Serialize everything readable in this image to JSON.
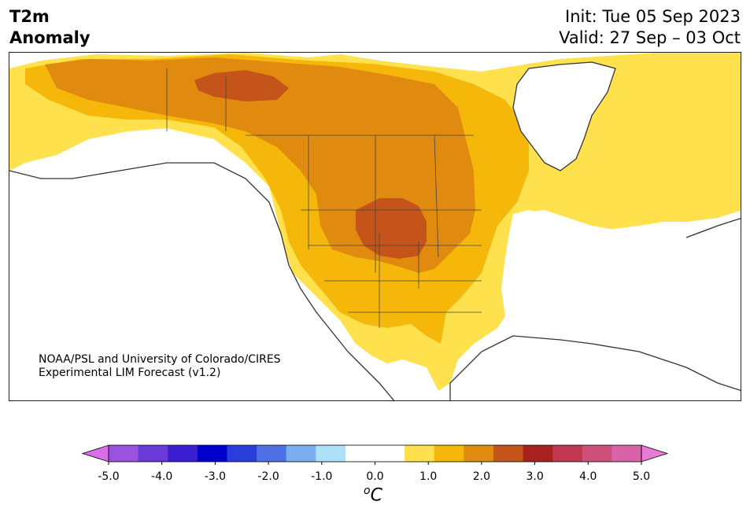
{
  "title": {
    "line1": "T2m",
    "line2": "Anomaly"
  },
  "dates": {
    "init": "Init: Tue 05 Sep 2023",
    "valid": "Valid: 27 Sep – 03 Oct"
  },
  "credit": {
    "line1": "NOAA/PSL and University of Colorado/CIRES",
    "line2": "Experimental LIM Forecast (v1.2)"
  },
  "colorbar": {
    "ticks": [
      "-5.0",
      "-4.0",
      "-3.0",
      "-2.0",
      "-1.0",
      "0.0",
      "1.0",
      "2.0",
      "3.0",
      "4.0",
      "5.0"
    ],
    "unit_symbol": "o",
    "unit_letter": "C",
    "colors": [
      "#d96ee8",
      "#9b52e0",
      "#6a3ad9",
      "#3a1fd0",
      "#0000cc",
      "#2a3ddb",
      "#4f6fe6",
      "#78aef0",
      "#aee0f8",
      "#ffffff",
      "#ffffff",
      "#ffe14d",
      "#f5b80a",
      "#e08a10",
      "#c4541a",
      "#a82020",
      "#c0384e",
      "#cf507a",
      "#d963a8",
      "#e87ad6"
    ]
  },
  "map_colors": {
    "land": "#ffffff",
    "ocean": "#ffffff",
    "lake": "#ffffff",
    "level1": "#ffe14d",
    "level2": "#f5b80a",
    "level3": "#e08a10",
    "level4": "#c4541a",
    "coast": "#333333"
  }
}
